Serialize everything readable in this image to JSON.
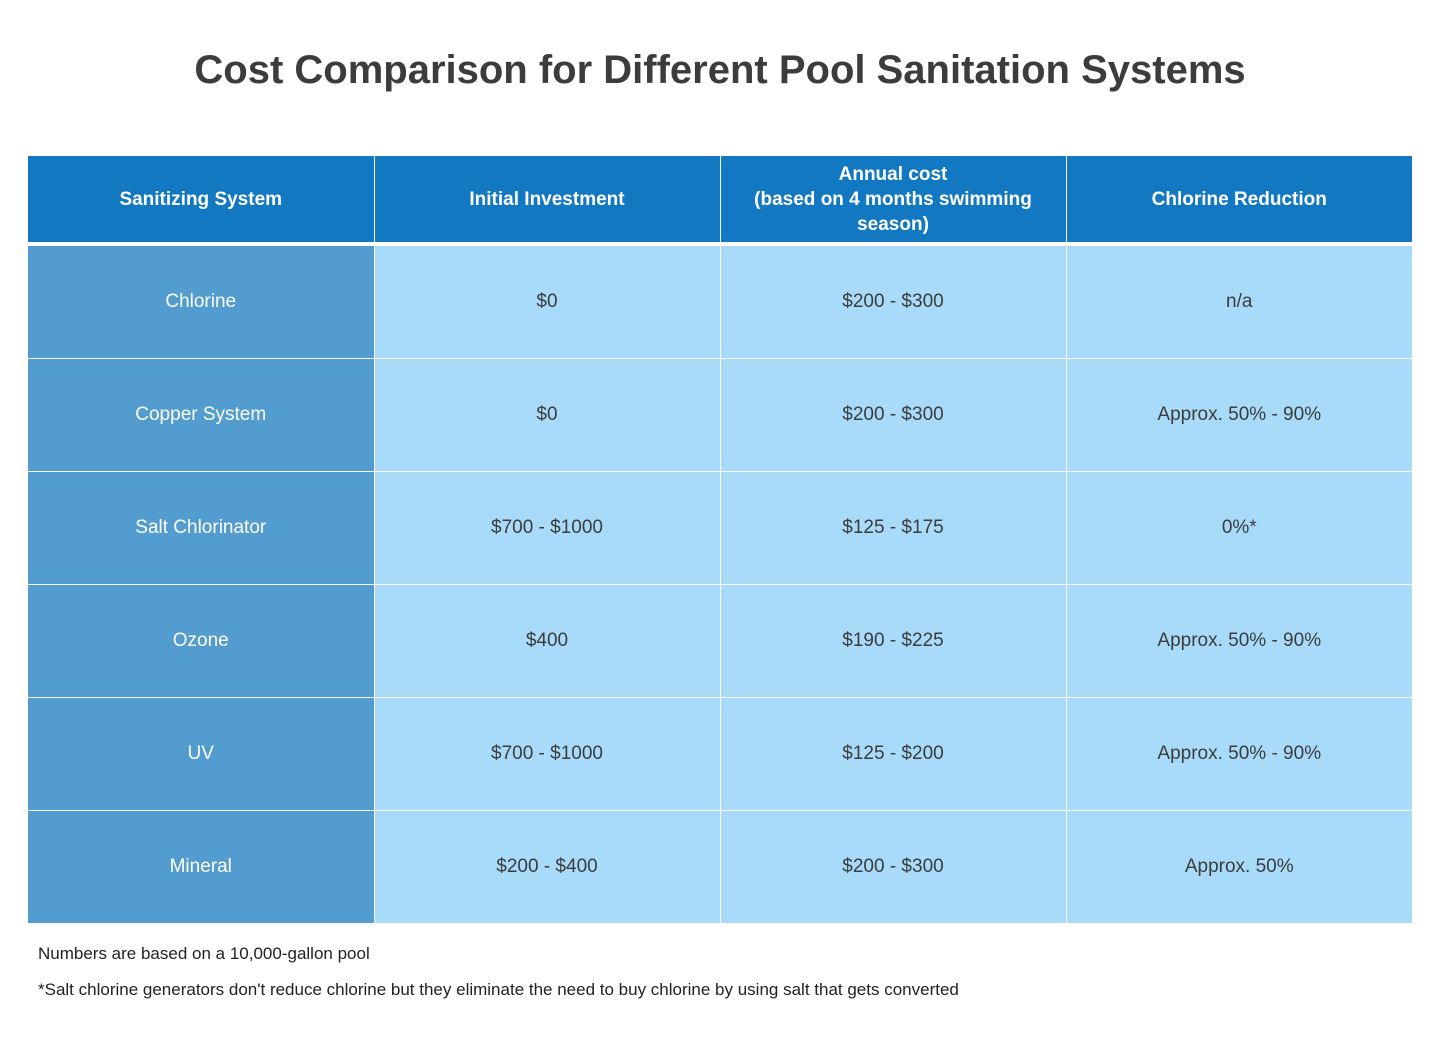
{
  "title": "Cost Comparison for Different Pool Sanitation Systems",
  "table": {
    "headers": [
      "Sanitizing System",
      "Initial Investment",
      "Annual cost\n(based on 4 months swimming season)",
      "Chlorine Reduction"
    ],
    "header_lines": {
      "annual_line1": "Annual cost",
      "annual_line2": "(based on 4 months swimming season)"
    },
    "rows": [
      [
        "Chlorine",
        "$0",
        "$200 - $300",
        "n/a"
      ],
      [
        "Copper System",
        "$0",
        "$200 - $300",
        "Approx. 50% - 90%"
      ],
      [
        "Salt Chlorinator",
        "$700 - $1000",
        "$125 - $175",
        "0%*"
      ],
      [
        "Ozone",
        "$400",
        "$190 - $225",
        "Approx. 50% - 90%"
      ],
      [
        "UV",
        "$700 - $1000",
        "$125 - $200",
        "Approx. 50% - 90%"
      ],
      [
        "Mineral",
        "$200 - $400",
        "$200 - $300",
        "Approx. 50%"
      ]
    ]
  },
  "notes": {
    "note1": "Numbers are based on a 10,000-gallon pool",
    "note2": "*Salt chlorine generators don't reduce chlorine but they eliminate the need to buy chlorine by using salt that gets converted"
  },
  "colors": {
    "header_bg": "#1378c2",
    "first_col_bg": "#539ccf",
    "cell_bg": "#a8dbf9",
    "title_text": "#3c3c3c"
  }
}
